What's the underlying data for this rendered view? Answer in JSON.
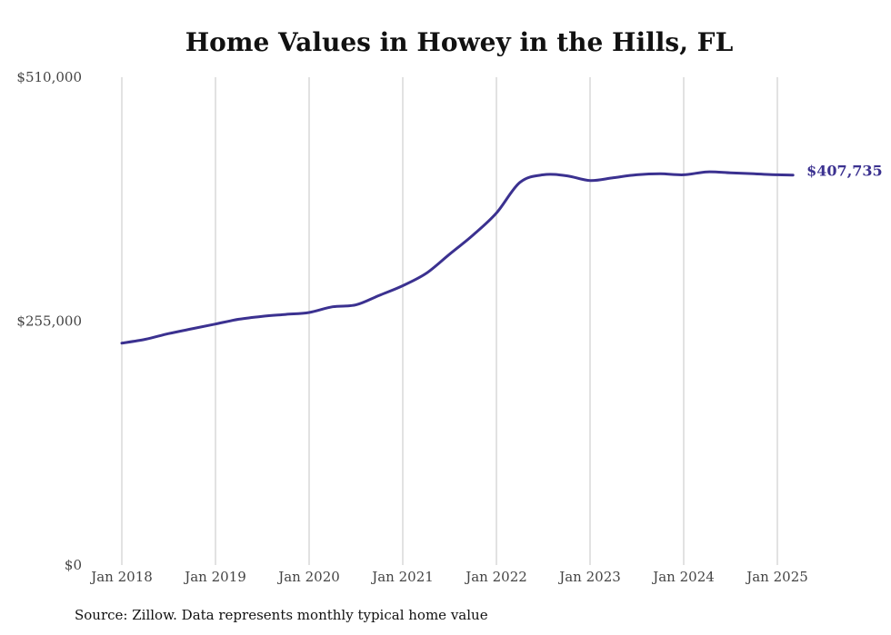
{
  "chart_data": {
    "type": "line",
    "title": "Home Values in Howey in the Hills, FL",
    "source": "Source: Zillow. Data represents monthly typical home value",
    "ylim": [
      0,
      510000
    ],
    "y_ticks": [
      {
        "value": 0,
        "label": "$0"
      },
      {
        "value": 255000,
        "label": "$255,000"
      },
      {
        "value": 510000,
        "label": "$510,000"
      }
    ],
    "x_ticks": [
      {
        "value": "2018-01",
        "label": "Jan 2018"
      },
      {
        "value": "2019-01",
        "label": "Jan 2019"
      },
      {
        "value": "2020-01",
        "label": "Jan 2020"
      },
      {
        "value": "2021-01",
        "label": "Jan 2021"
      },
      {
        "value": "2022-01",
        "label": "Jan 2022"
      },
      {
        "value": "2023-01",
        "label": "Jan 2023"
      },
      {
        "value": "2024-01",
        "label": "Jan 2024"
      },
      {
        "value": "2025-01",
        "label": "Jan 2025"
      }
    ],
    "grid": "vertical",
    "line_color": "#3b3190",
    "end_label": "$407,735",
    "series": [
      {
        "x": [
          "2018-01",
          "2018-04",
          "2018-07",
          "2018-10",
          "2019-01",
          "2019-04",
          "2019-07",
          "2019-10",
          "2020-01",
          "2020-04",
          "2020-07",
          "2020-10",
          "2021-01",
          "2021-04",
          "2021-07",
          "2021-10",
          "2022-01",
          "2022-04",
          "2022-07",
          "2022-10",
          "2023-01",
          "2023-04",
          "2023-07",
          "2023-10",
          "2024-01",
          "2024-04",
          "2024-07",
          "2024-10",
          "2025-01",
          "2025-03"
        ],
        "values": [
          232000,
          236000,
          242000,
          247000,
          252000,
          257000,
          260000,
          262000,
          264000,
          270000,
          272000,
          282000,
          292000,
          305000,
          325000,
          345000,
          368000,
          400000,
          408000,
          407000,
          402000,
          405000,
          408000,
          409000,
          408000,
          411000,
          410000,
          409000,
          408000,
          407735
        ]
      }
    ]
  }
}
